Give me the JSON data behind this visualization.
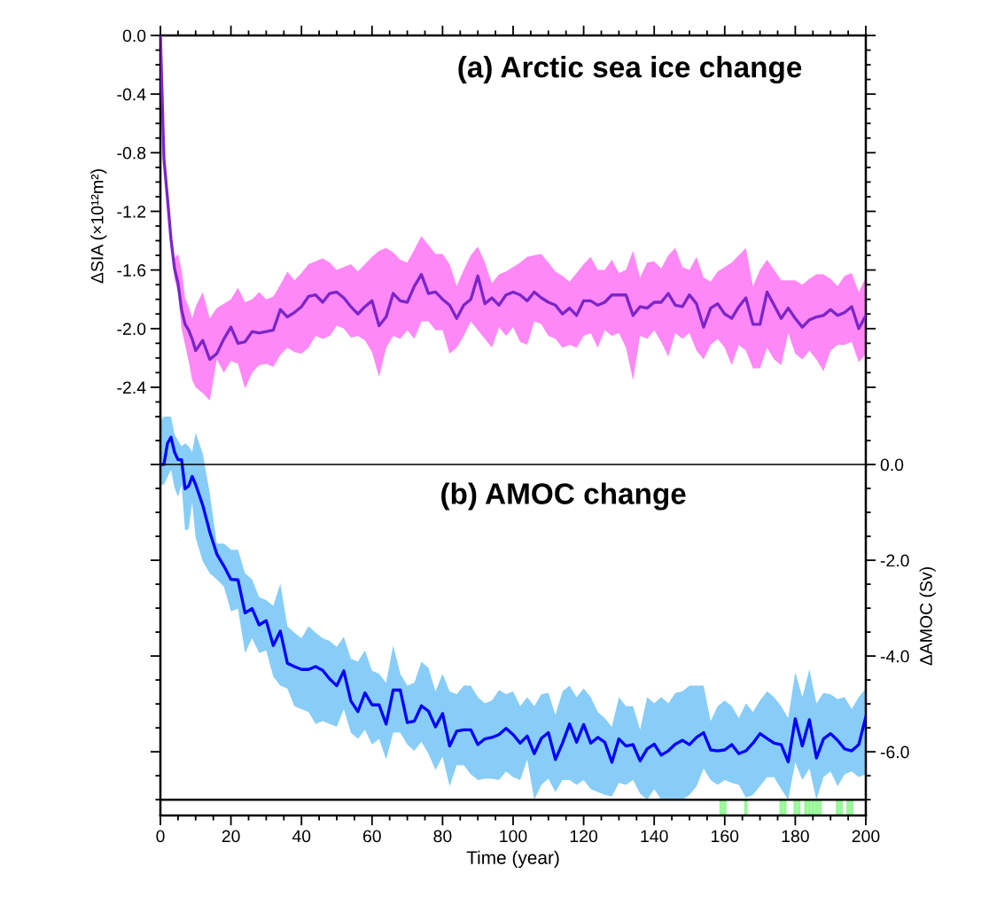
{
  "chart_data": [
    {
      "type": "line",
      "title": "(a) Arctic sea ice change",
      "ylabel": "ΔSIA (×10¹²m²)",
      "tick_labels": "y",
      "xlim": [
        0,
        200
      ],
      "xticks": [
        0,
        20,
        40,
        60,
        80,
        100,
        120,
        140,
        160,
        180,
        200
      ],
      "ylim": [
        -2.6,
        0
      ],
      "yticks": [
        {
          "value": 0,
          "label": "0.0"
        },
        -0.4,
        -0.8,
        -1.2,
        -1.6,
        {
          "value": -2,
          "label": "-2.0"
        },
        -2.4
      ],
      "grid": false,
      "legend": false,
      "x": [
        0,
        1,
        2,
        3,
        4,
        5,
        6,
        7,
        8,
        9,
        10,
        12,
        14,
        16,
        18,
        20,
        22,
        24,
        26,
        28,
        30,
        32,
        34,
        36,
        38,
        40,
        42,
        44,
        46,
        48,
        50,
        52,
        54,
        56,
        58,
        60,
        62,
        64,
        66,
        68,
        70,
        72,
        74,
        76,
        78,
        80,
        82,
        84,
        86,
        88,
        90,
        92,
        94,
        96,
        98,
        100,
        102,
        104,
        106,
        108,
        110,
        112,
        114,
        116,
        118,
        120,
        122,
        124,
        126,
        128,
        130,
        132,
        134,
        136,
        138,
        140,
        142,
        144,
        146,
        148,
        150,
        152,
        154,
        156,
        158,
        160,
        162,
        164,
        166,
        168,
        170,
        172,
        174,
        176,
        178,
        180,
        182,
        184,
        186,
        188,
        190,
        192,
        194,
        196,
        198,
        200
      ],
      "series": [
        {
          "color": "#7b25c9",
          "values": [
            0,
            -0.84,
            -1.11,
            -1.39,
            -1.59,
            -1.69,
            -1.87,
            -1.97,
            -2.01,
            -2.07,
            -2.15,
            -2.08,
            -2.21,
            -2.17,
            -2.07,
            -1.99,
            -2.1,
            -2.09,
            -2.02,
            -2.03,
            -2.02,
            -2.01,
            -1.87,
            -1.92,
            -1.89,
            -1.85,
            -1.78,
            -1.77,
            -1.82,
            -1.76,
            -1.75,
            -1.79,
            -1.85,
            -1.9,
            -1.85,
            -1.81,
            -1.98,
            -1.92,
            -1.76,
            -1.81,
            -1.82,
            -1.71,
            -1.63,
            -1.76,
            -1.75,
            -1.8,
            -1.84,
            -1.93,
            -1.84,
            -1.8,
            -1.64,
            -1.83,
            -1.79,
            -1.84,
            -1.77,
            -1.75,
            -1.77,
            -1.81,
            -1.75,
            -1.79,
            -1.82,
            -1.84,
            -1.9,
            -1.86,
            -1.91,
            -1.81,
            -1.81,
            -1.84,
            -1.82,
            -1.77,
            -1.77,
            -1.77,
            -1.91,
            -1.85,
            -1.86,
            -1.82,
            -1.82,
            -1.76,
            -1.84,
            -1.85,
            -1.77,
            -1.83,
            -1.99,
            -1.86,
            -1.83,
            -1.9,
            -1.93,
            -1.85,
            -1.79,
            -1.97,
            -1.97,
            -1.75,
            -1.84,
            -1.93,
            -1.86,
            -1.93,
            -1.99,
            -1.94,
            -1.92,
            -1.91,
            -1.87,
            -1.91,
            -1.89,
            -1.85,
            -2.0,
            -1.91
          ],
          "upper": [
            0,
            -0.82,
            -1.08,
            -1.34,
            -1.52,
            -1.49,
            -1.6,
            -1.79,
            -1.85,
            -1.93,
            -1.85,
            -1.75,
            -1.93,
            -1.86,
            -1.83,
            -1.8,
            -1.72,
            -1.82,
            -1.8,
            -1.75,
            -1.8,
            -1.78,
            -1.7,
            -1.61,
            -1.67,
            -1.62,
            -1.56,
            -1.54,
            -1.52,
            -1.55,
            -1.6,
            -1.58,
            -1.56,
            -1.61,
            -1.56,
            -1.51,
            -1.47,
            -1.45,
            -1.48,
            -1.53,
            -1.55,
            -1.46,
            -1.37,
            -1.43,
            -1.49,
            -1.49,
            -1.56,
            -1.71,
            -1.6,
            -1.5,
            -1.44,
            -1.55,
            -1.69,
            -1.63,
            -1.61,
            -1.58,
            -1.55,
            -1.51,
            -1.5,
            -1.49,
            -1.55,
            -1.61,
            -1.64,
            -1.68,
            -1.62,
            -1.56,
            -1.51,
            -1.6,
            -1.6,
            -1.53,
            -1.62,
            -1.6,
            -1.47,
            -1.65,
            -1.55,
            -1.54,
            -1.59,
            -1.5,
            -1.45,
            -1.58,
            -1.6,
            -1.51,
            -1.65,
            -1.68,
            -1.61,
            -1.58,
            -1.55,
            -1.5,
            -1.45,
            -1.71,
            -1.6,
            -1.53,
            -1.6,
            -1.67,
            -1.67,
            -1.67,
            -1.7,
            -1.66,
            -1.63,
            -1.63,
            -1.66,
            -1.71,
            -1.64,
            -1.62,
            -1.75,
            -1.65
          ],
          "lower": [
            0,
            -0.86,
            -1.14,
            -1.44,
            -1.66,
            -1.75,
            -2.0,
            -2.11,
            -2.22,
            -2.35,
            -2.4,
            -2.44,
            -2.49,
            -2.21,
            -2.3,
            -2.22,
            -2.24,
            -2.41,
            -2.3,
            -2.25,
            -2.24,
            -2.26,
            -2.18,
            -2.13,
            -2.16,
            -2.17,
            -2.13,
            -2.05,
            -2.07,
            -2.05,
            -1.98,
            -2.0,
            -2.06,
            -2.05,
            -2.08,
            -2.16,
            -2.33,
            -2.13,
            -2.05,
            -2.07,
            -2.01,
            -2.07,
            -1.95,
            -1.95,
            -2.01,
            -2.01,
            -2.17,
            -2.13,
            -2.05,
            -1.95,
            -2.01,
            -2.07,
            -2.13,
            -1.99,
            -2.05,
            -1.99,
            -2.09,
            -2.11,
            -1.95,
            -1.97,
            -2.05,
            -2.07,
            -2.13,
            -2.11,
            -2.13,
            -2.05,
            -2.03,
            -2.13,
            -2.01,
            -2.05,
            -2.03,
            -2.13,
            -2.35,
            -2.05,
            -2.07,
            -2.01,
            -2.09,
            -2.19,
            -2.03,
            -2.07,
            -2.03,
            -2.15,
            -2.21,
            -2.11,
            -2.07,
            -2.13,
            -2.25,
            -2.11,
            -2.15,
            -2.27,
            -2.27,
            -2.13,
            -2.21,
            -2.25,
            -2.03,
            -2.17,
            -2.21,
            -2.15,
            -2.21,
            -2.29,
            -2.15,
            -2.11,
            -2.11,
            -2.09,
            -2.23,
            -2.17
          ]
        }
      ]
    },
    {
      "type": "line",
      "title": "(b) AMOC change",
      "ylabel": "ΔAMOC (Sv)",
      "xlabel": "Time (year)",
      "xlim": [
        0,
        200
      ],
      "xticks": [
        0,
        20,
        40,
        60,
        80,
        100,
        120,
        140,
        160,
        180,
        200
      ],
      "ylim": [
        -7.33,
        1.0
      ],
      "yticks": [
        {
          "value": 0,
          "label": "0.0"
        },
        {
          "value": -2,
          "label": "-2.0"
        },
        {
          "value": -4,
          "label": "-4.0"
        },
        {
          "value": -6,
          "label": "-6.0"
        }
      ],
      "grid": false,
      "legend": false,
      "ref_lines": [
        {
          "axis": "y",
          "value": 0,
          "color": "#000000"
        },
        {
          "axis": "y",
          "value": -7.0,
          "color": "#000000"
        }
      ],
      "x": [
        0,
        1,
        2,
        3,
        4,
        5,
        6,
        7,
        8,
        9,
        10,
        12,
        14,
        16,
        18,
        20,
        22,
        24,
        26,
        28,
        30,
        32,
        34,
        36,
        38,
        40,
        42,
        44,
        46,
        48,
        50,
        52,
        54,
        56,
        58,
        60,
        62,
        64,
        66,
        68,
        70,
        72,
        74,
        76,
        78,
        80,
        82,
        84,
        86,
        88,
        90,
        92,
        94,
        96,
        98,
        100,
        102,
        104,
        106,
        108,
        110,
        112,
        114,
        116,
        118,
        120,
        122,
        124,
        126,
        128,
        130,
        132,
        134,
        136,
        138,
        140,
        142,
        144,
        146,
        148,
        150,
        152,
        154,
        156,
        158,
        160,
        162,
        164,
        166,
        168,
        170,
        172,
        174,
        176,
        178,
        180,
        182,
        184,
        186,
        188,
        190,
        192,
        194,
        196,
        198,
        200
      ],
      "series": [
        {
          "color": "#0000ff",
          "values": [
            0,
            0,
            0.44,
            0.57,
            0.26,
            0.1,
            0.1,
            -0.51,
            -0.45,
            -0.25,
            -0.42,
            -0.85,
            -1.41,
            -1.87,
            -2.12,
            -2.4,
            -2.41,
            -3.1,
            -3.01,
            -3.35,
            -3.26,
            -3.78,
            -3.48,
            -4.15,
            -4.22,
            -4.28,
            -4.28,
            -4.22,
            -4.3,
            -4.48,
            -4.62,
            -4.31,
            -4.94,
            -5.16,
            -4.77,
            -5.02,
            -5.02,
            -5.42,
            -4.71,
            -4.71,
            -5.39,
            -5.36,
            -5.04,
            -5.15,
            -5.48,
            -5.2,
            -5.88,
            -5.57,
            -5.54,
            -5.54,
            -5.85,
            -5.73,
            -5.7,
            -5.64,
            -5.51,
            -5.64,
            -5.82,
            -5.67,
            -6.04,
            -5.72,
            -5.6,
            -6.16,
            -5.82,
            -5.42,
            -5.8,
            -5.43,
            -5.82,
            -5.7,
            -5.8,
            -6.22,
            -5.73,
            -5.88,
            -5.85,
            -6.19,
            -5.94,
            -5.84,
            -6.07,
            -5.98,
            -5.84,
            -5.76,
            -5.85,
            -5.7,
            -5.6,
            -5.96,
            -5.98,
            -5.96,
            -5.85,
            -6.04,
            -5.98,
            -5.82,
            -5.62,
            -5.72,
            -5.82,
            -5.85,
            -6.21,
            -5.31,
            -5.88,
            -5.33,
            -6.13,
            -5.73,
            -5.62,
            -5.76,
            -5.94,
            -5.98,
            -5.85,
            -5.27
          ],
          "upper": [
            0.9,
            1.0,
            1.0,
            1.0,
            0.63,
            0.5,
            0.38,
            0.44,
            0.38,
            0.26,
            0.66,
            0.23,
            -0.6,
            -1.65,
            -1.65,
            -1.78,
            -1.78,
            -2.27,
            -2.4,
            -2.77,
            -2.83,
            -2.95,
            -2.49,
            -3.38,
            -3.51,
            -3.63,
            -3.38,
            -3.51,
            -3.63,
            -3.69,
            -3.81,
            -3.6,
            -4.06,
            -4.12,
            -3.88,
            -4.31,
            -4.37,
            -4.56,
            -3.78,
            -4.37,
            -4.62,
            -4.56,
            -4.12,
            -4.25,
            -4.74,
            -4.37,
            -4.74,
            -4.8,
            -4.62,
            -4.62,
            -4.86,
            -4.99,
            -4.93,
            -4.71,
            -4.8,
            -4.74,
            -5.05,
            -4.86,
            -5.05,
            -4.8,
            -4.77,
            -5.23,
            -4.74,
            -4.62,
            -4.86,
            -4.68,
            -4.86,
            -5.17,
            -5.3,
            -5.48,
            -4.86,
            -5.05,
            -5.05,
            -5.54,
            -4.86,
            -4.99,
            -4.86,
            -4.99,
            -4.77,
            -4.74,
            -4.62,
            -4.62,
            -4.62,
            -5.36,
            -5.05,
            -4.93,
            -5.05,
            -5.3,
            -4.99,
            -5.17,
            -4.93,
            -4.74,
            -4.86,
            -5.05,
            -5.3,
            -4.34,
            -4.86,
            -4.28,
            -4.99,
            -4.77,
            -4.8,
            -4.9,
            -4.86,
            -5.11,
            -4.86,
            -4.68
          ],
          "lower": [
            -0.42,
            -0.42,
            -0.27,
            -0.11,
            -0.48,
            -0.67,
            -0.42,
            -1.38,
            -1.35,
            -0.79,
            -1.53,
            -2.02,
            -2.27,
            -2.4,
            -2.55,
            -3.07,
            -3.01,
            -3.94,
            -3.63,
            -3.94,
            -3.88,
            -4.43,
            -4.62,
            -4.68,
            -5.05,
            -5.11,
            -5.17,
            -5.42,
            -5.36,
            -5.42,
            -5.48,
            -5.11,
            -5.6,
            -5.73,
            -5.54,
            -5.85,
            -5.73,
            -6.16,
            -5.6,
            -5.6,
            -5.85,
            -5.98,
            -5.79,
            -6.04,
            -6.38,
            -6.1,
            -6.72,
            -6.28,
            -6.28,
            -6.47,
            -6.59,
            -6.56,
            -6.56,
            -6.59,
            -6.41,
            -6.53,
            -6.59,
            -6.16,
            -7.0,
            -6.69,
            -6.56,
            -6.84,
            -6.59,
            -6.59,
            -6.69,
            -6.59,
            -6.78,
            -6.84,
            -6.9,
            -6.93,
            -6.65,
            -6.69,
            -6.59,
            -6.87,
            -7.0,
            -6.78,
            -7.0,
            -7.0,
            -7.0,
            -7.0,
            -6.9,
            -6.72,
            -6.35,
            -6.59,
            -6.69,
            -6.59,
            -6.65,
            -6.69,
            -6.96,
            -6.9,
            -6.72,
            -6.53,
            -6.53,
            -6.78,
            -7.0,
            -6.22,
            -6.59,
            -6.35,
            -7.0,
            -6.53,
            -6.41,
            -6.72,
            -6.47,
            -6.41,
            -6.53,
            -6.47
          ]
        },
        {
          "type": "bar",
          "color": "#99f799",
          "x": [
            159,
            160,
            166,
            176,
            177,
            180,
            181,
            183,
            184,
            185,
            186,
            187,
            192,
            193,
            195,
            196
          ],
          "base": [
            -7.33,
            -7.33,
            -7.33,
            -7.33,
            -7.33,
            -7.33,
            -7.33,
            -7.33,
            -7.33,
            -7.33,
            -7.33,
            -7.33,
            -7.33,
            -7.33,
            -7.33,
            -7.33
          ],
          "values": [
            0.33,
            0.33,
            0.33,
            0.33,
            0.33,
            0.33,
            0.33,
            0.33,
            0.33,
            0.33,
            0.33,
            0.33,
            0.33,
            0.33,
            0.33,
            0.33
          ]
        }
      ]
    }
  ]
}
